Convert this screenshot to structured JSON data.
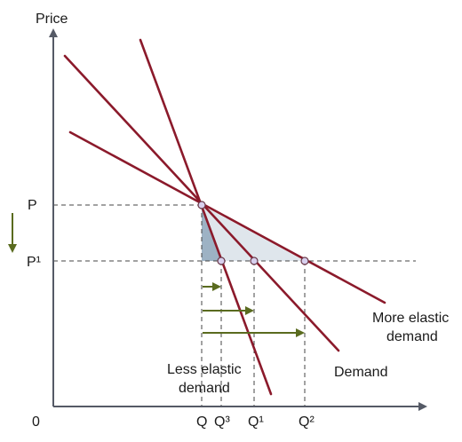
{
  "labels": {
    "price_axis": "Price",
    "origin": "0",
    "p": "P",
    "p1": "P¹",
    "q": "Q",
    "q3": "Q³",
    "q1": "Q¹",
    "q2": "Q²",
    "more_elastic_line1": "More elastic",
    "more_elastic_line2": "demand",
    "demand": "Demand",
    "less_elastic_line1": "Less elastic",
    "less_elastic_line2": "demand"
  },
  "colors": {
    "curve": "#8b1a2b",
    "axis": "#555a66",
    "arrow": "#5a6b1f",
    "point_fill": "#d8d0ee",
    "point_stroke": "#6a3a4a",
    "shade_dark": "#9db2c4",
    "shade_light": "#dfe6ec"
  }
}
